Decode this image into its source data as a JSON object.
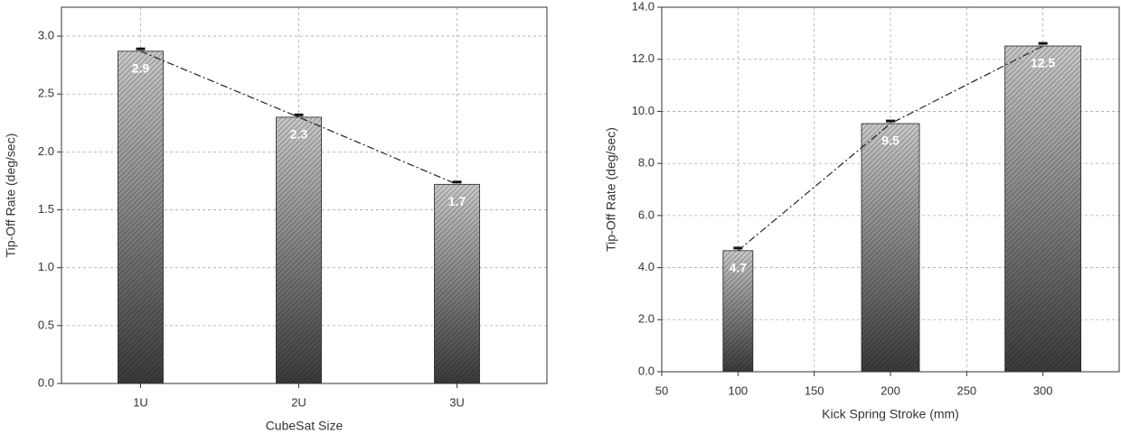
{
  "chart_data": [
    {
      "type": "bar",
      "y_label": "Tip-Off Rate (deg/sec)",
      "x_label": "CubeSat Size",
      "categories": [
        "1U",
        "2U",
        "3U"
      ],
      "values": [
        2.87,
        2.3,
        1.72
      ],
      "value_labels": [
        "2.9",
        "2.3",
        "1.7"
      ],
      "errors": [
        0.02,
        0.02,
        0.02
      ],
      "ylim": [
        0,
        3.25
      ],
      "yticks": [
        {
          "value": 0,
          "label": "0.0"
        },
        0.5,
        {
          "value": 1,
          "label": "1.0"
        },
        1.5,
        {
          "value": 2,
          "label": "2.0"
        },
        2.5,
        {
          "value": 3,
          "label": "3.0"
        }
      ],
      "grid": true,
      "trend_line": true
    },
    {
      "type": "bar",
      "y_label": "Tip-Off Rate (deg/sec)",
      "x_label": "Kick Spring Stroke (mm)",
      "x": [
        100,
        200,
        300
      ],
      "values": [
        4.65,
        9.53,
        12.51
      ],
      "value_labels": [
        "4.7",
        "9.5",
        "12.5"
      ],
      "errors": [
        0.1,
        0.1,
        0.1
      ],
      "xlim": [
        50,
        350
      ],
      "xticks": [
        50,
        100,
        150,
        200,
        250,
        300
      ],
      "ylim": [
        0,
        14
      ],
      "yticks": [
        {
          "value": 0,
          "label": "0.0"
        },
        {
          "value": 2,
          "label": "2.0"
        },
        {
          "value": 4,
          "label": "4.0"
        },
        {
          "value": 6,
          "label": "6.0"
        },
        {
          "value": 8,
          "label": "8.0"
        },
        {
          "value": 10,
          "label": "10.0"
        },
        {
          "value": 12,
          "label": "12.0"
        },
        {
          "value": 14,
          "label": "14.0"
        }
      ],
      "grid": true,
      "trend_line": true
    }
  ]
}
